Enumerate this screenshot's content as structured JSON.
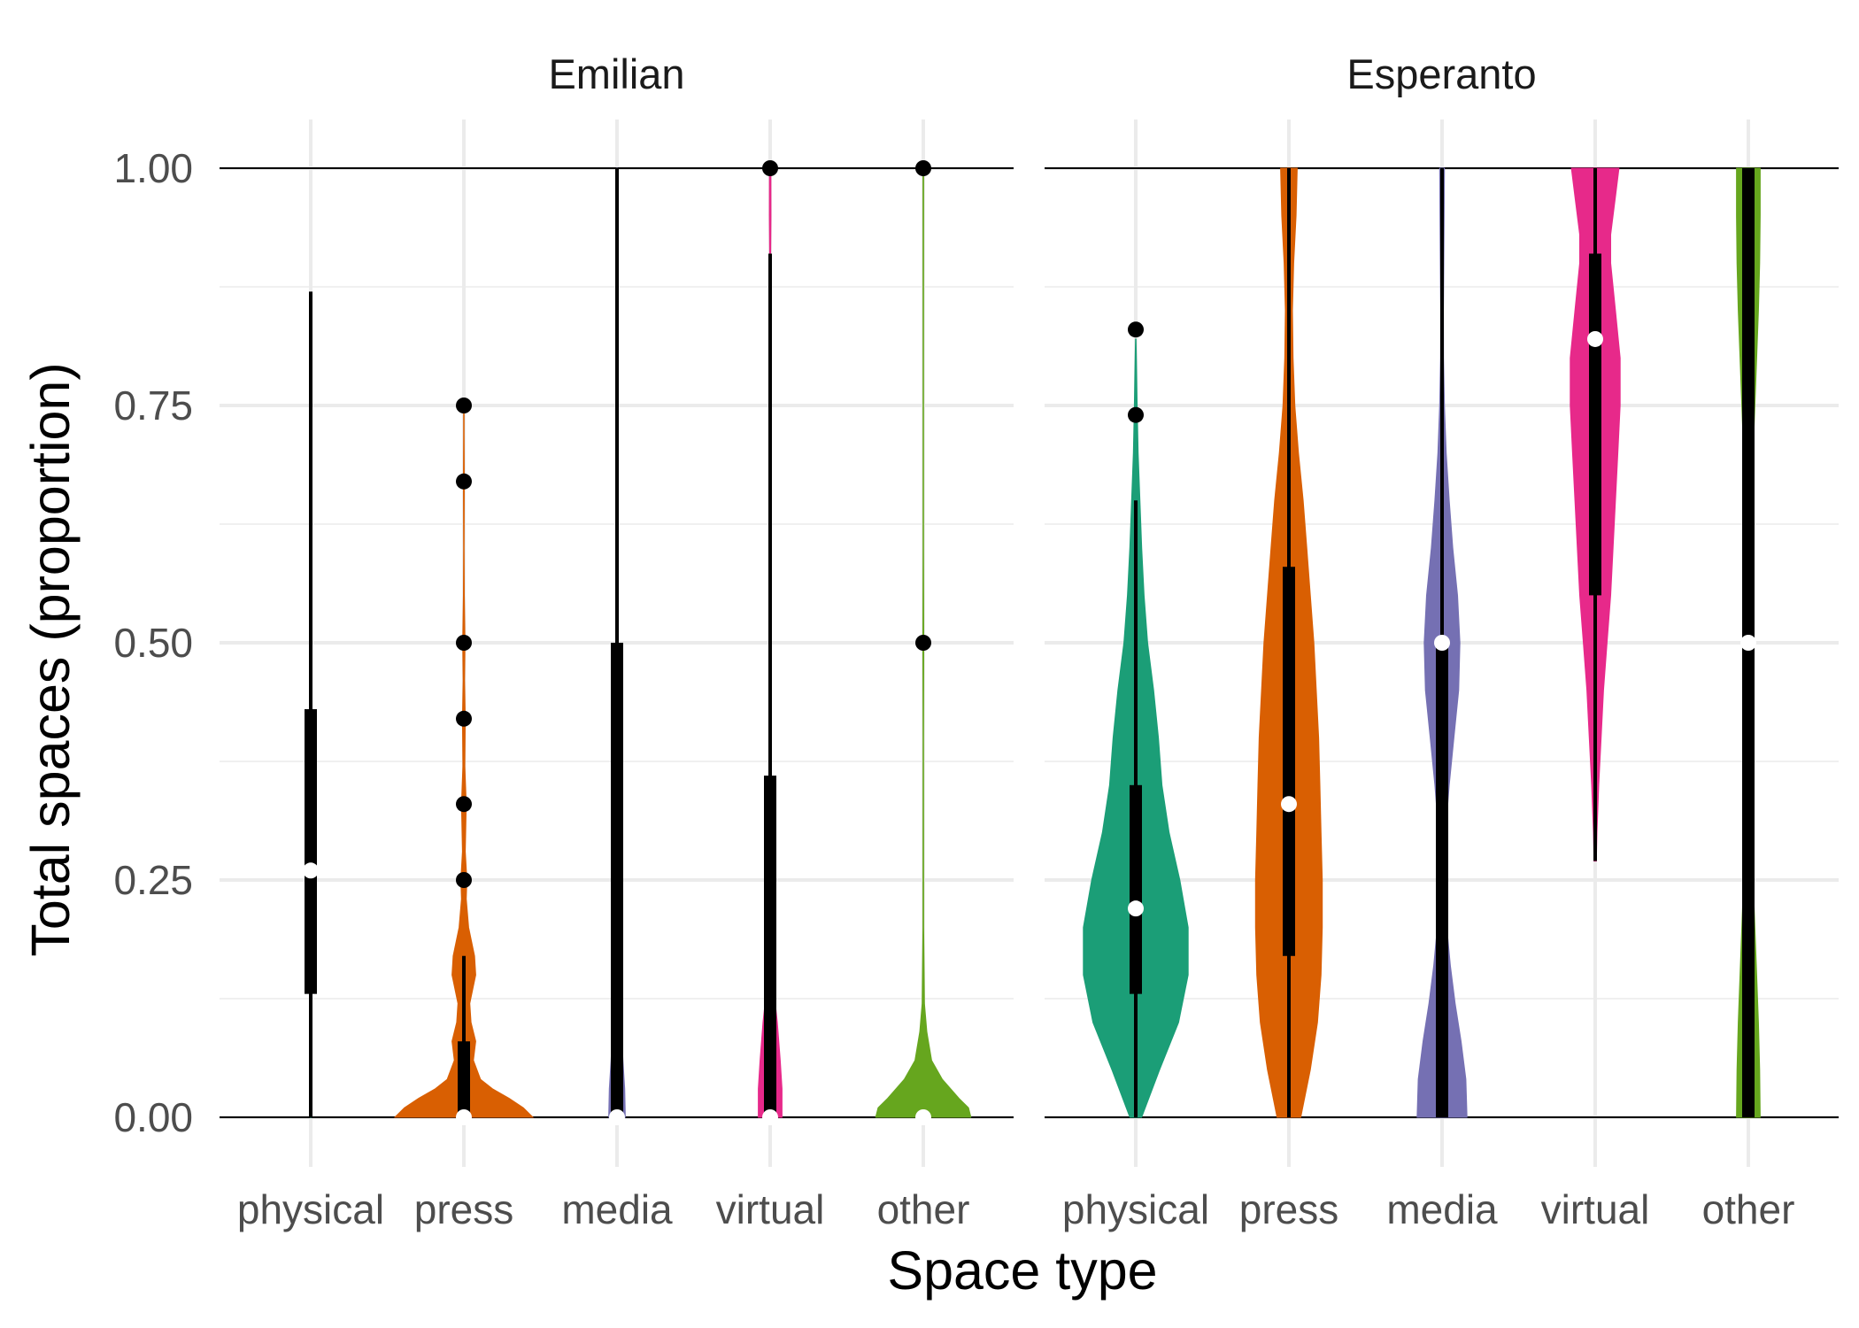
{
  "chart_data": {
    "type": "violin",
    "xlabel": "Space type",
    "ylabel": "Total spaces (proportion)",
    "categories": [
      "physical",
      "press",
      "media",
      "virtual",
      "other"
    ],
    "ylim": [
      0,
      1
    ],
    "yticks": [
      {
        "value": 0,
        "label": "0.00"
      },
      {
        "value": 0.25,
        "label": "0.25"
      },
      {
        "value": 0.5,
        "label": "0.50"
      },
      {
        "value": 0.75,
        "label": "0.75"
      },
      {
        "value": 1,
        "label": "1.00"
      }
    ],
    "grid": true,
    "legend": "none",
    "colors": {
      "physical": "#1b9e77",
      "press": "#d95f02",
      "media": "#7570b3",
      "virtual": "#e7298a",
      "other": "#66a61e"
    },
    "facets": [
      {
        "title": "Emilian",
        "groups": [
          {
            "category": "physical",
            "median": 0.26,
            "q1": 0.13,
            "q3": 0.43,
            "whisker_low": 0,
            "whisker_high": 0.87,
            "outliers": [],
            "density": [
              [
                0,
                0.002
              ],
              [
                0.05,
                0.006
              ],
              [
                0.1,
                0.01
              ],
              [
                0.15,
                0.012
              ],
              [
                0.2,
                0.012
              ],
              [
                0.25,
                0.012
              ],
              [
                0.3,
                0.012
              ],
              [
                0.35,
                0.012
              ],
              [
                0.4,
                0.011
              ],
              [
                0.45,
                0.01
              ],
              [
                0.5,
                0.008
              ],
              [
                0.55,
                0.005
              ],
              [
                0.6,
                0.003
              ],
              [
                0.65,
                0.001
              ],
              [
                0.68,
                0
              ]
            ]
          },
          {
            "category": "press",
            "median": 0,
            "q1": 0,
            "q3": 0.08,
            "whisker_low": 0,
            "whisker_high": 0.17,
            "outliers": [
              0.25,
              0.33,
              0.42,
              0.5,
              0.67,
              0.75
            ],
            "density": [
              [
                0,
                0.58
              ],
              [
                0.01,
                0.5
              ],
              [
                0.02,
                0.38
              ],
              [
                0.03,
                0.24
              ],
              [
                0.04,
                0.14
              ],
              [
                0.06,
                0.08
              ],
              [
                0.08,
                0.1
              ],
              [
                0.1,
                0.06
              ],
              [
                0.12,
                0.05
              ],
              [
                0.15,
                0.1
              ],
              [
                0.17,
                0.09
              ],
              [
                0.2,
                0.04
              ],
              [
                0.23,
                0.02
              ],
              [
                0.25,
                0.025
              ],
              [
                0.28,
                0.012
              ],
              [
                0.33,
                0.02
              ],
              [
                0.37,
                0.008
              ],
              [
                0.42,
                0.012
              ],
              [
                0.46,
                0.006
              ],
              [
                0.5,
                0.01
              ],
              [
                0.55,
                0.004
              ],
              [
                0.6,
                0.002
              ],
              [
                0.67,
                0.004
              ],
              [
                0.72,
                0.002
              ],
              [
                0.75,
                0.002
              ]
            ]
          },
          {
            "category": "media",
            "median": 0,
            "q1": 0,
            "q3": 0.5,
            "whisker_low": 0,
            "whisker_high": 1,
            "outliers": [],
            "density": [
              [
                0,
                0.07
              ],
              [
                0.03,
                0.065
              ],
              [
                0.06,
                0.05
              ],
              [
                0.1,
                0.035
              ],
              [
                0.13,
                0.02
              ],
              [
                0.18,
                0.008
              ],
              [
                0.25,
                0.003
              ],
              [
                0.4,
                0.002
              ],
              [
                0.5,
                0.003
              ],
              [
                0.6,
                0.002
              ],
              [
                0.8,
                0.001
              ],
              [
                1,
                0.001
              ]
            ]
          },
          {
            "category": "virtual",
            "median": 0,
            "q1": 0,
            "q3": 0.36,
            "whisker_low": 0,
            "whisker_high": 0.91,
            "outliers": [
              1
            ],
            "density": [
              [
                0,
                0.1
              ],
              [
                0.03,
                0.1
              ],
              [
                0.06,
                0.085
              ],
              [
                0.1,
                0.06
              ],
              [
                0.13,
                0.035
              ],
              [
                0.17,
                0.012
              ],
              [
                0.25,
                0.004
              ],
              [
                0.35,
                0.003
              ],
              [
                0.5,
                0.002
              ],
              [
                0.7,
                0.002
              ],
              [
                0.9,
                0.004
              ],
              [
                0.95,
                0.007
              ],
              [
                1,
                0.006
              ]
            ]
          },
          {
            "category": "other",
            "median": 0,
            "q1": 0,
            "q3": 0,
            "whisker_low": 0,
            "whisker_high": 0,
            "outliers": [
              0.5,
              1
            ],
            "density": [
              [
                0,
                0.4
              ],
              [
                0.01,
                0.38
              ],
              [
                0.02,
                0.3
              ],
              [
                0.04,
                0.16
              ],
              [
                0.06,
                0.07
              ],
              [
                0.09,
                0.03
              ],
              [
                0.12,
                0.01
              ],
              [
                0.2,
                0.003
              ],
              [
                0.4,
                0.002
              ],
              [
                0.5,
                0.004
              ],
              [
                0.6,
                0.002
              ],
              [
                0.8,
                0.002
              ],
              [
                1,
                0.003
              ]
            ]
          }
        ]
      },
      {
        "title": "Esperanto",
        "groups": [
          {
            "category": "physical",
            "median": 0.22,
            "q1": 0.13,
            "q3": 0.35,
            "whisker_low": 0,
            "whisker_high": 0.65,
            "outliers": [
              0.74,
              0.83
            ],
            "density": [
              [
                0,
                0.05
              ],
              [
                0.05,
                0.2
              ],
              [
                0.1,
                0.36
              ],
              [
                0.15,
                0.44
              ],
              [
                0.2,
                0.44
              ],
              [
                0.25,
                0.37
              ],
              [
                0.3,
                0.28
              ],
              [
                0.35,
                0.22
              ],
              [
                0.4,
                0.19
              ],
              [
                0.45,
                0.15
              ],
              [
                0.5,
                0.1
              ],
              [
                0.55,
                0.07
              ],
              [
                0.6,
                0.05
              ],
              [
                0.65,
                0.035
              ],
              [
                0.7,
                0.02
              ],
              [
                0.75,
                0.012
              ],
              [
                0.8,
                0.005
              ],
              [
                0.82,
                0.002
              ]
            ]
          },
          {
            "category": "press",
            "median": 0.33,
            "q1": 0.17,
            "q3": 0.58,
            "whisker_low": 0,
            "whisker_high": 1,
            "outliers": [],
            "density": [
              [
                0,
                0.1
              ],
              [
                0.05,
                0.18
              ],
              [
                0.1,
                0.24
              ],
              [
                0.15,
                0.27
              ],
              [
                0.2,
                0.28
              ],
              [
                0.25,
                0.28
              ],
              [
                0.3,
                0.27
              ],
              [
                0.35,
                0.26
              ],
              [
                0.4,
                0.25
              ],
              [
                0.45,
                0.23
              ],
              [
                0.5,
                0.21
              ],
              [
                0.55,
                0.18
              ],
              [
                0.6,
                0.15
              ],
              [
                0.65,
                0.12
              ],
              [
                0.7,
                0.08
              ],
              [
                0.75,
                0.05
              ],
              [
                0.8,
                0.035
              ],
              [
                0.85,
                0.03
              ],
              [
                0.9,
                0.04
              ],
              [
                0.95,
                0.06
              ],
              [
                1,
                0.07
              ]
            ]
          },
          {
            "category": "media",
            "median": 0.5,
            "q1": 0,
            "q3": 0.5,
            "whisker_low": 0,
            "whisker_high": 1,
            "outliers": [],
            "density": [
              [
                0,
                0.21
              ],
              [
                0.04,
                0.2
              ],
              [
                0.08,
                0.16
              ],
              [
                0.12,
                0.11
              ],
              [
                0.16,
                0.07
              ],
              [
                0.2,
                0.04
              ],
              [
                0.25,
                0.025
              ],
              [
                0.3,
                0.03
              ],
              [
                0.35,
                0.06
              ],
              [
                0.4,
                0.1
              ],
              [
                0.45,
                0.14
              ],
              [
                0.5,
                0.15
              ],
              [
                0.55,
                0.13
              ],
              [
                0.6,
                0.09
              ],
              [
                0.65,
                0.06
              ],
              [
                0.7,
                0.035
              ],
              [
                0.75,
                0.02
              ],
              [
                0.8,
                0.013
              ],
              [
                0.85,
                0.012
              ],
              [
                0.9,
                0.015
              ],
              [
                0.95,
                0.018
              ],
              [
                1,
                0.02
              ]
            ]
          },
          {
            "category": "virtual",
            "median": 0.82,
            "q1": 0.55,
            "q3": 0.91,
            "whisker_low": 0.27,
            "whisker_high": 1,
            "outliers": [],
            "density": [
              [
                0.27,
                0.01
              ],
              [
                0.3,
                0.015
              ],
              [
                0.35,
                0.03
              ],
              [
                0.4,
                0.05
              ],
              [
                0.45,
                0.07
              ],
              [
                0.5,
                0.1
              ],
              [
                0.55,
                0.13
              ],
              [
                0.6,
                0.15
              ],
              [
                0.65,
                0.17
              ],
              [
                0.7,
                0.19
              ],
              [
                0.75,
                0.21
              ],
              [
                0.8,
                0.21
              ],
              [
                0.85,
                0.17
              ],
              [
                0.9,
                0.13
              ],
              [
                0.93,
                0.13
              ],
              [
                0.97,
                0.17
              ],
              [
                1,
                0.2
              ]
            ]
          },
          {
            "category": "other",
            "median": 0.5,
            "q1": 0,
            "q3": 1,
            "whisker_low": 0,
            "whisker_high": 1,
            "outliers": [],
            "density": [
              [
                0,
                0.1
              ],
              [
                0.05,
                0.095
              ],
              [
                0.1,
                0.085
              ],
              [
                0.15,
                0.07
              ],
              [
                0.2,
                0.055
              ],
              [
                0.25,
                0.04
              ],
              [
                0.3,
                0.028
              ],
              [
                0.35,
                0.02
              ],
              [
                0.4,
                0.016
              ],
              [
                0.45,
                0.014
              ],
              [
                0.5,
                0.014
              ],
              [
                0.55,
                0.016
              ],
              [
                0.6,
                0.02
              ],
              [
                0.65,
                0.028
              ],
              [
                0.7,
                0.04
              ],
              [
                0.75,
                0.055
              ],
              [
                0.8,
                0.07
              ],
              [
                0.85,
                0.085
              ],
              [
                0.9,
                0.095
              ],
              [
                0.95,
                0.1
              ],
              [
                1,
                0.1
              ]
            ]
          }
        ]
      }
    ]
  }
}
